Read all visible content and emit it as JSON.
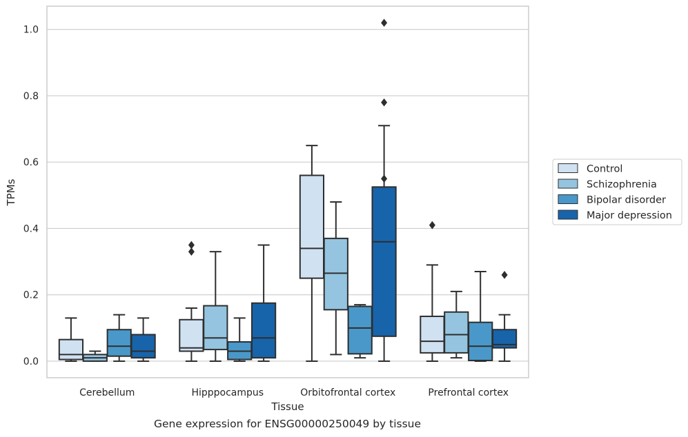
{
  "caption": "Gene expression for ENSG00000250049 by tissue",
  "colors": {
    "Control": "#d0e1f2",
    "Schizophrenia": "#94c4df",
    "Bipolar disorder": "#4a98c9",
    "Major depression": "#1764ab",
    "outline": "#2e2e2e",
    "grid": "#cccccc"
  },
  "chart_data": {
    "type": "boxplot",
    "xlabel": "Tissue",
    "ylabel": "TPMs",
    "ylim": [
      -0.05,
      1.07
    ],
    "yticks": [
      0.0,
      0.2,
      0.4,
      0.6,
      0.8,
      1.0
    ],
    "ytick_labels": [
      "0.0",
      "0.2",
      "0.4",
      "0.6",
      "0.8",
      "1.0"
    ],
    "categories": [
      "Cerebellum",
      "Hipppocampus",
      "Orbitofrontal cortex",
      "Prefrontal cortex"
    ],
    "grid": "horizontal",
    "legend_position": "right",
    "series": [
      {
        "name": "Control",
        "boxes": [
          {
            "whislo": 0.0,
            "q1": 0.005,
            "med": 0.02,
            "q3": 0.065,
            "whishi": 0.13,
            "fliers": []
          },
          {
            "whislo": 0.0,
            "q1": 0.03,
            "med": 0.04,
            "q3": 0.125,
            "whishi": 0.16,
            "fliers": [
              0.33,
              0.35
            ]
          },
          {
            "whislo": 0.0,
            "q1": 0.25,
            "med": 0.34,
            "q3": 0.56,
            "whishi": 0.65,
            "fliers": []
          },
          {
            "whislo": 0.0,
            "q1": 0.025,
            "med": 0.06,
            "q3": 0.135,
            "whishi": 0.29,
            "fliers": [
              0.41
            ]
          }
        ]
      },
      {
        "name": "Schizophrenia",
        "boxes": [
          {
            "whislo": 0.0,
            "q1": 0.0,
            "med": 0.01,
            "q3": 0.02,
            "whishi": 0.03,
            "fliers": []
          },
          {
            "whislo": 0.0,
            "q1": 0.035,
            "med": 0.07,
            "q3": 0.167,
            "whishi": 0.33,
            "fliers": []
          },
          {
            "whislo": 0.02,
            "q1": 0.155,
            "med": 0.265,
            "q3": 0.37,
            "whishi": 0.48,
            "fliers": []
          },
          {
            "whislo": 0.01,
            "q1": 0.025,
            "med": 0.08,
            "q3": 0.148,
            "whishi": 0.21,
            "fliers": []
          }
        ]
      },
      {
        "name": "Bipolar disorder",
        "boxes": [
          {
            "whislo": 0.0,
            "q1": 0.015,
            "med": 0.045,
            "q3": 0.095,
            "whishi": 0.14,
            "fliers": []
          },
          {
            "whislo": 0.0,
            "q1": 0.005,
            "med": 0.03,
            "q3": 0.058,
            "whishi": 0.13,
            "fliers": []
          },
          {
            "whislo": 0.01,
            "q1": 0.022,
            "med": 0.1,
            "q3": 0.165,
            "whishi": 0.17,
            "fliers": []
          },
          {
            "whislo": 0.0,
            "q1": 0.002,
            "med": 0.045,
            "q3": 0.117,
            "whishi": 0.27,
            "fliers": []
          }
        ]
      },
      {
        "name": "Major depression",
        "boxes": [
          {
            "whislo": 0.0,
            "q1": 0.01,
            "med": 0.03,
            "q3": 0.08,
            "whishi": 0.13,
            "fliers": []
          },
          {
            "whislo": 0.0,
            "q1": 0.01,
            "med": 0.07,
            "q3": 0.175,
            "whishi": 0.35,
            "fliers": []
          },
          {
            "whislo": 0.0,
            "q1": 0.075,
            "med": 0.36,
            "q3": 0.525,
            "whishi": 0.71,
            "fliers": [
              0.55,
              0.78,
              1.02
            ]
          },
          {
            "whislo": 0.0,
            "q1": 0.04,
            "med": 0.05,
            "q3": 0.095,
            "whishi": 0.14,
            "fliers": [
              0.26
            ]
          }
        ]
      }
    ]
  }
}
